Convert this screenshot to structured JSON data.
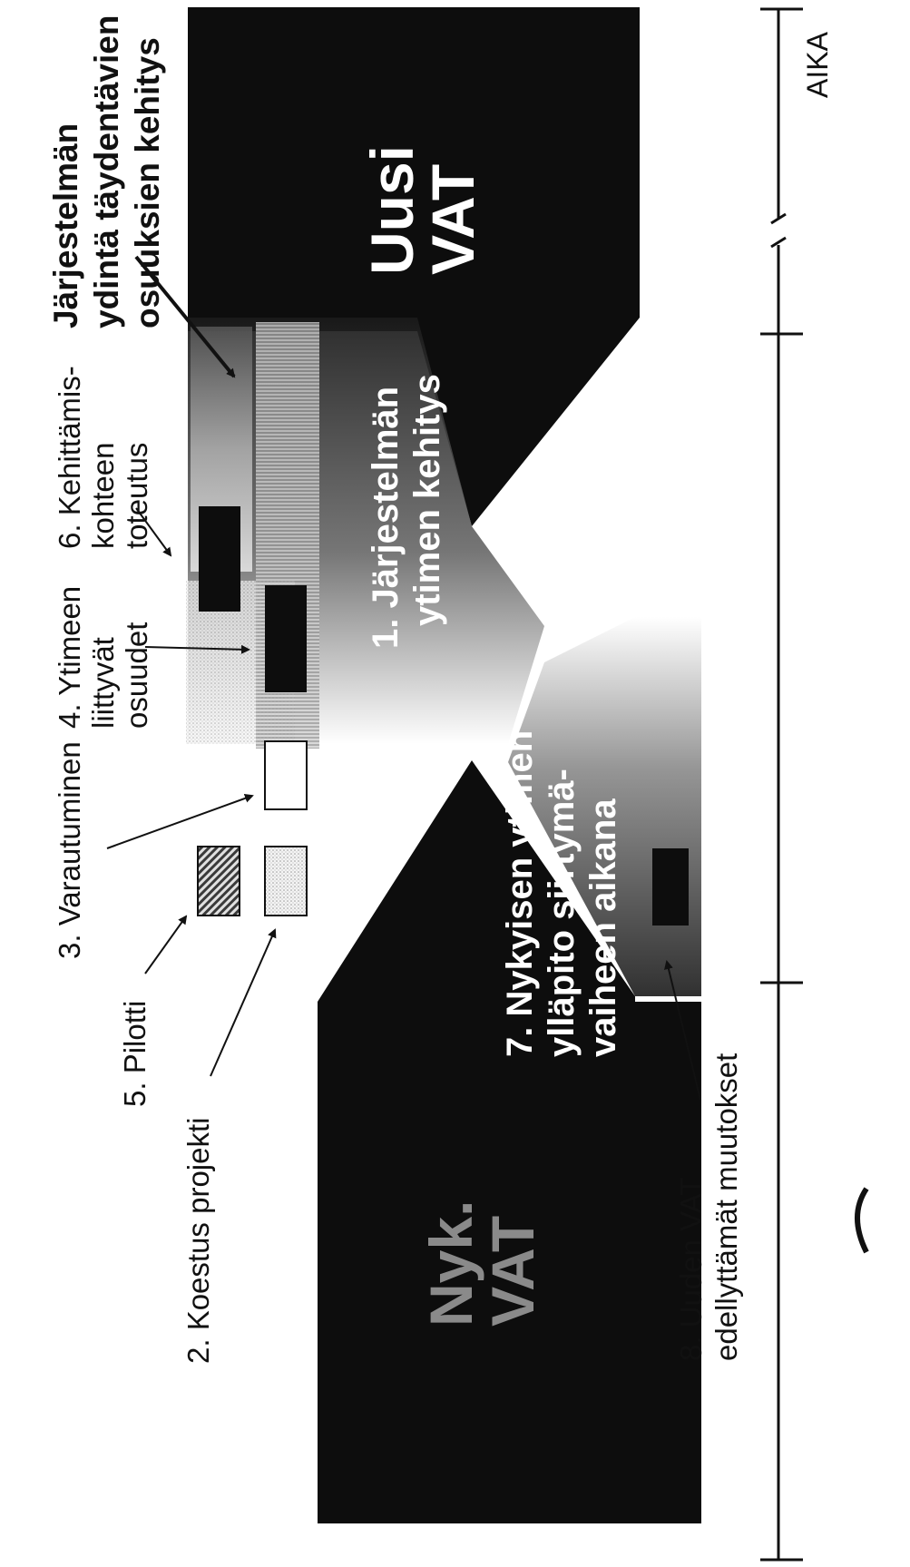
{
  "labels": {
    "new_system_core_dev": "Järjestelmän ydintä täydentävien osuuksien kehitys",
    "dev_item": "6. Kehittämis- kohteen toteutus",
    "core_parts": "4. Ytimeen liittyvät osuudet",
    "preparation": "3. Varautuminen",
    "pilot": "5. Pilotti",
    "test_project": "2. Koestus projekti",
    "new_vat_changes": "8. Uuden VAT edellyttämät muutokset",
    "timeline_end": "AIKA"
  },
  "lines": {
    "new_system_core_dev": [
      "Järjestelmän",
      "ydintä täydentävien",
      "osuuksien kehitys"
    ],
    "dev_item": [
      "6. Kehittämis-",
      "kohteen",
      "toteutus"
    ],
    "core_parts": [
      "4. Ytimeen",
      "liittyvät",
      "osuudet"
    ],
    "new_vat_changes": [
      "8. Uuden VAT",
      "edellyttämät muutokset"
    ]
  },
  "regions": {
    "new_vat": [
      "Uusi",
      "VAT"
    ],
    "core_dev": [
      "1. Järjestelmän",
      "ytimen kehitys"
    ],
    "maintenance": [
      "7. Nykyisen ytimen",
      "ylläpito siirtymä-",
      "vaiheen aikana"
    ],
    "old_vat": [
      "Nyk.",
      "VAT"
    ]
  },
  "colors": {
    "block": "#0d0d0d",
    "background": "#ffffff",
    "ink": "#111111"
  }
}
